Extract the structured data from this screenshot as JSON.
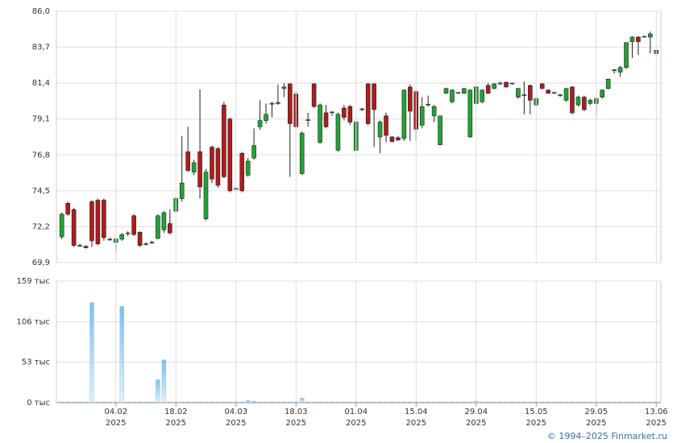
{
  "chart_data": {
    "type": "candlestick",
    "up_color": "#22a334",
    "down_color": "#b01c1c",
    "categories": [
      null,
      null,
      null,
      null,
      null,
      null,
      null,
      null,
      null,
      "04.02",
      null,
      null,
      null,
      null,
      null,
      null,
      null,
      null,
      null,
      "18.02",
      null,
      null,
      null,
      null,
      null,
      null,
      null,
      null,
      null,
      "04.03",
      null,
      null,
      null,
      null,
      null,
      null,
      null,
      null,
      null,
      "18.03",
      null,
      null,
      null,
      null,
      null,
      null,
      null,
      null,
      null,
      "01.04",
      null,
      null,
      null,
      null,
      null,
      null,
      null,
      null,
      null,
      "15.04",
      null,
      null,
      null,
      null,
      null,
      null,
      null,
      null,
      null,
      "29.04",
      null,
      null,
      null,
      null,
      null,
      null,
      null,
      null,
      null,
      "15.05",
      null,
      null,
      null,
      null,
      null,
      null,
      null,
      null,
      null,
      "29.05",
      null,
      null,
      null,
      null,
      null,
      null,
      null,
      null,
      null,
      "13.06"
    ],
    "x_year": "2025",
    "open": [
      71.55,
      73.7,
      73.3,
      71.0,
      70.95,
      73.8,
      73.9,
      73.9,
      71.4,
      71.2,
      71.4,
      71.75,
      72.9,
      71.85,
      71.1,
      71.15,
      71.45,
      72.0,
      72.4,
      73.2,
      74.0,
      77.0,
      75.7,
      77.0,
      72.7,
      77.3,
      77.2,
      80.0,
      79.1,
      74.6,
      76.9,
      75.5,
      76.6,
      78.6,
      79.0,
      80.05,
      80.1,
      81.05,
      81.35,
      80.7,
      75.6,
      79.0,
      81.35,
      77.6,
      79.5,
      79.5,
      77.1,
      79.8,
      79.9,
      77.1,
      79.7,
      81.35,
      81.35,
      77.95,
      79.3,
      77.95,
      77.9,
      77.85,
      81.15,
      80.85,
      78.7,
      80.0,
      79.3,
      77.45,
      80.75,
      80.2,
      80.75,
      80.75,
      77.95,
      80.1,
      80.2,
      81.25,
      81.05,
      81.35,
      81.45,
      81.35,
      80.5,
      80.6,
      81.25,
      80.0,
      81.35,
      80.95,
      80.75,
      80.6,
      80.3,
      81.15,
      80.0,
      80.5,
      80.1,
      80.1,
      80.5,
      81.05,
      82.2,
      82.1,
      82.4,
      84.05,
      84.35,
      84.35,
      84.35,
      83.3
    ],
    "high": [
      73.1,
      73.8,
      73.4,
      71.1,
      71.0,
      73.9,
      74.0,
      74.0,
      71.5,
      71.5,
      71.8,
      71.9,
      73.0,
      71.9,
      71.2,
      71.3,
      73.0,
      73.2,
      73.3,
      74.1,
      78.0,
      78.6,
      76.5,
      81.0,
      75.9,
      77.4,
      77.3,
      80.2,
      79.2,
      74.8,
      77.0,
      76.6,
      78.5,
      80.3,
      80.1,
      80.2,
      81.3,
      81.4,
      81.4,
      80.9,
      78.3,
      79.5,
      81.4,
      80.1,
      80.0,
      79.6,
      79.5,
      80.0,
      80.0,
      79.0,
      79.8,
      81.4,
      81.4,
      79.0,
      79.5,
      78.0,
      78.0,
      81.0,
      81.3,
      81.0,
      80.5,
      80.6,
      80.0,
      79.3,
      81.1,
      81.0,
      80.8,
      81.1,
      81.0,
      81.3,
      81.0,
      81.4,
      81.4,
      81.5,
      81.5,
      81.4,
      81.1,
      81.5,
      81.3,
      80.5,
      81.4,
      81.0,
      80.8,
      80.7,
      81.1,
      81.2,
      80.6,
      80.6,
      80.4,
      80.5,
      81.0,
      81.7,
      82.3,
      82.5,
      84.0,
      84.4,
      84.4,
      84.4,
      84.7,
      83.5
    ],
    "low": [
      71.4,
      72.9,
      70.9,
      70.9,
      70.8,
      70.9,
      71.0,
      71.3,
      71.3,
      70.55,
      71.3,
      71.6,
      71.6,
      70.9,
      71.0,
      71.1,
      71.4,
      71.8,
      71.7,
      73.1,
      73.8,
      75.7,
      75.5,
      74.0,
      72.6,
      75.0,
      74.7,
      75.3,
      74.4,
      74.5,
      74.4,
      75.4,
      76.5,
      78.4,
      78.8,
      79.2,
      80.0,
      80.5,
      75.4,
      78.5,
      75.5,
      78.6,
      79.8,
      77.5,
      78.5,
      79.3,
      77.0,
      79.0,
      78.7,
      77.0,
      79.6,
      78.7,
      77.3,
      76.9,
      77.6,
      77.6,
      77.7,
      77.7,
      77.7,
      77.7,
      78.5,
      79.9,
      78.9,
      77.4,
      80.7,
      80.1,
      80.7,
      80.7,
      77.9,
      80.0,
      80.1,
      80.7,
      81.0,
      81.3,
      81.1,
      81.3,
      80.4,
      79.4,
      79.4,
      79.9,
      81.0,
      80.7,
      80.7,
      80.5,
      80.2,
      79.4,
      79.9,
      79.6,
      80.0,
      79.3,
      80.4,
      81.0,
      82.0,
      81.8,
      82.3,
      83.0,
      83.2,
      84.3,
      83.3,
      83.2
    ],
    "close": [
      73.0,
      73.0,
      71.0,
      71.0,
      70.85,
      71.3,
      71.1,
      71.5,
      71.4,
      71.4,
      71.7,
      71.8,
      71.7,
      71.0,
      71.1,
      71.2,
      72.9,
      73.1,
      71.8,
      74.0,
      75.0,
      75.8,
      76.3,
      74.75,
      75.7,
      75.25,
      74.85,
      75.4,
      74.5,
      74.65,
      74.5,
      76.4,
      77.4,
      79.0,
      79.4,
      80.1,
      80.15,
      81.15,
      78.8,
      78.6,
      78.2,
      79.05,
      79.9,
      80.0,
      78.6,
      79.55,
      79.4,
      79.2,
      78.9,
      78.9,
      79.75,
      78.8,
      79.7,
      78.9,
      78.05,
      77.65,
      77.75,
      80.95,
      79.6,
      78.45,
      79.9,
      80.05,
      79.9,
      79.3,
      81.05,
      80.95,
      80.8,
      81.05,
      80.95,
      81.15,
      80.95,
      80.75,
      81.35,
      81.4,
      81.15,
      81.4,
      81.05,
      80.65,
      80.3,
      80.4,
      81.05,
      80.75,
      80.8,
      80.65,
      81.05,
      79.5,
      80.5,
      79.7,
      80.3,
      80.4,
      80.95,
      81.65,
      82.25,
      82.4,
      84.0,
      84.35,
      84.05,
      84.4,
      84.55,
      83.5
    ],
    "ylim": [
      69.9,
      86.0
    ],
    "yticks": [
      {
        "value": 69.9,
        "label": "69,9"
      },
      {
        "value": 72.2,
        "label": "72,2"
      },
      {
        "value": 74.5,
        "label": "74,5"
      },
      {
        "value": 76.8,
        "label": "76,8"
      },
      {
        "value": 79.1,
        "label": "79,1"
      },
      {
        "value": 81.4,
        "label": "81,4"
      },
      {
        "value": 83.7,
        "label": "83,7"
      },
      {
        "value": 86.0,
        "label": "86,0"
      }
    ],
    "grid": true,
    "volume": {
      "color": "#7fbfef",
      "values": [
        1,
        1,
        1,
        1,
        1,
        131,
        1,
        1,
        1,
        1,
        126,
        1,
        1,
        1,
        1,
        1,
        30,
        56,
        1,
        1,
        1,
        1,
        1,
        1,
        1,
        1,
        1,
        1,
        1,
        1,
        1,
        3,
        2,
        1,
        1,
        1,
        1,
        1,
        1,
        1,
        6,
        1,
        1,
        1,
        1,
        1,
        1,
        1,
        1,
        1,
        1,
        1,
        1,
        1,
        1,
        1,
        1,
        1,
        1,
        1,
        1,
        1,
        1,
        1,
        1,
        1,
        1,
        1,
        1,
        2,
        1,
        1,
        1,
        1,
        1,
        1,
        1,
        1,
        1,
        1,
        1,
        1,
        1,
        1,
        1,
        1,
        1,
        1,
        1,
        1,
        1,
        1,
        1,
        1,
        1,
        1,
        1,
        1,
        1,
        1
      ],
      "ylim": [
        0,
        159
      ],
      "yticks": [
        {
          "value": 0,
          "label": "0 тыс"
        },
        {
          "value": 53,
          "label": "53 тыс"
        },
        {
          "value": 106,
          "label": "106 тыс"
        },
        {
          "value": 159,
          "label": "159 тыс"
        }
      ]
    }
  },
  "footer": "© 1994–2025 Finmarket.ru"
}
